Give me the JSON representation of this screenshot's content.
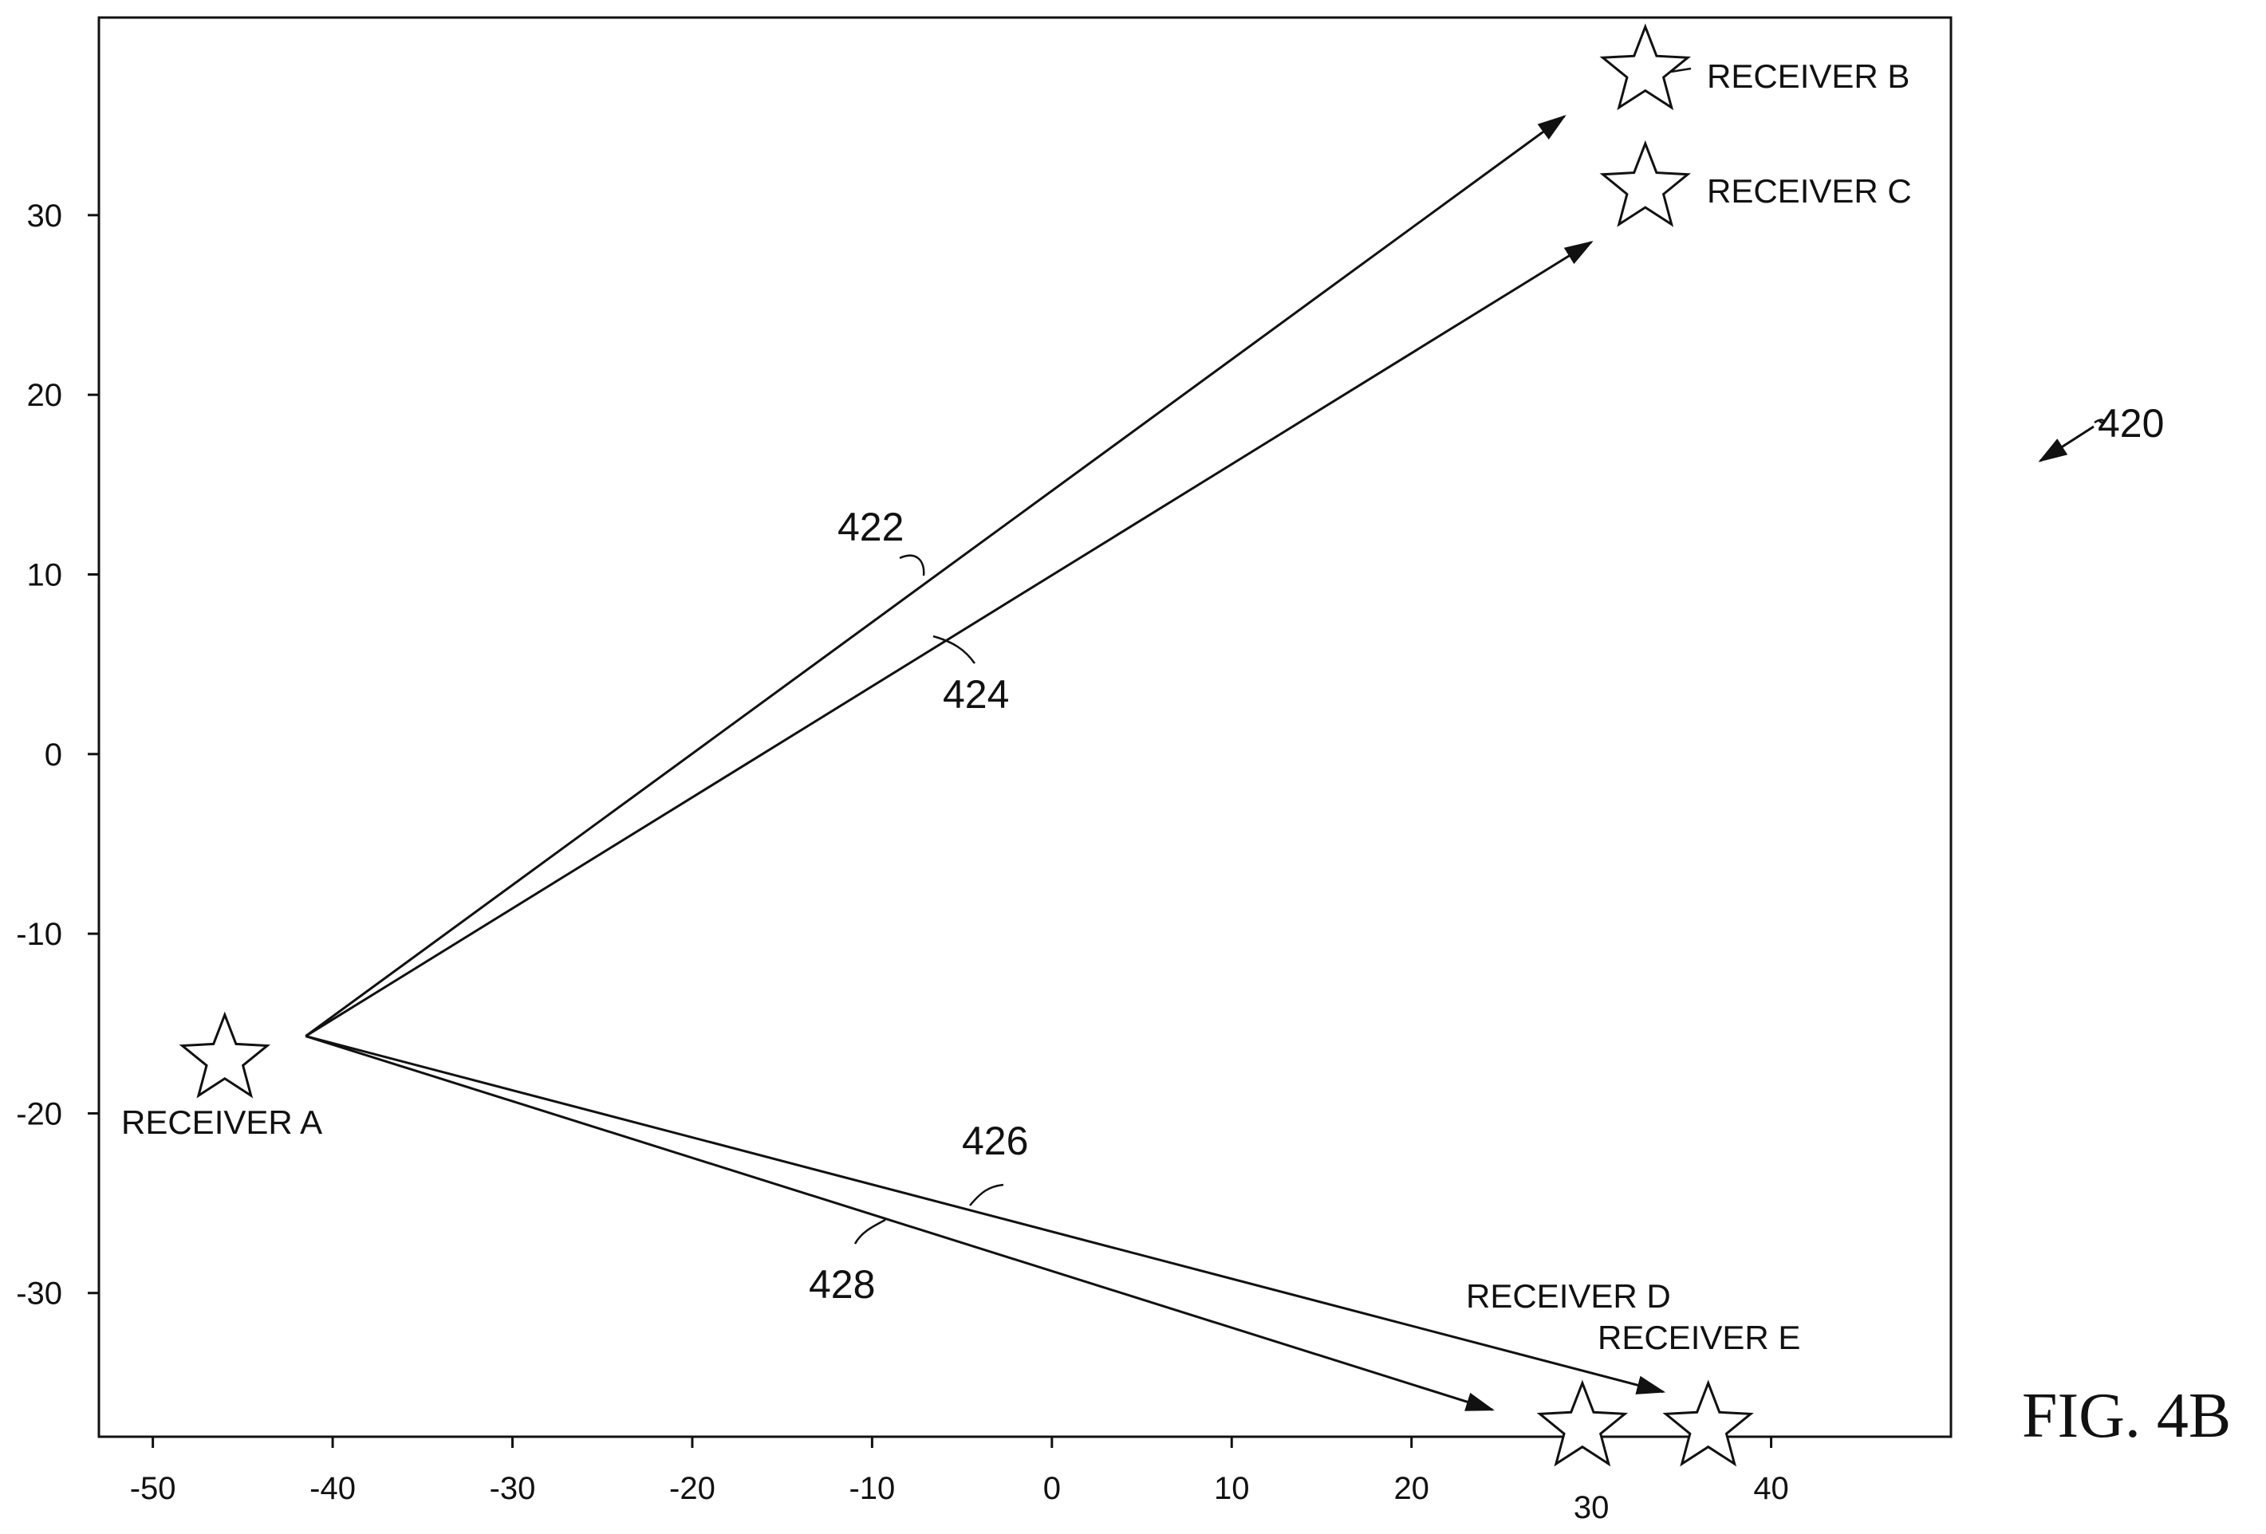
{
  "figure": {
    "ref_number": "420",
    "label": "FIG. 4B"
  },
  "axes": {
    "x_ticks": [
      "-50",
      "-40",
      "-30",
      "-20",
      "-10",
      "0",
      "10",
      "20",
      "30",
      "40"
    ],
    "y_ticks": [
      "30",
      "20",
      "10",
      "0",
      "-10",
      "-20",
      "-30"
    ],
    "xlim": [
      -53,
      50
    ],
    "ylim": [
      -38,
      41
    ]
  },
  "receivers": [
    {
      "id": "a",
      "label": "RECEIVER A",
      "x": -46,
      "y": -17
    },
    {
      "id": "b",
      "label": "RECEIVER B",
      "x": 33,
      "y": 38
    },
    {
      "id": "c",
      "label": "RECEIVER C",
      "x": 33,
      "y": 31.5
    },
    {
      "id": "d",
      "label": "RECEIVER D",
      "x": 29.5,
      "y": -37.5
    },
    {
      "id": "e",
      "label": "RECEIVER E",
      "x": 36.5,
      "y": -37.5
    }
  ],
  "vectors": [
    {
      "id": "422",
      "label": "422",
      "from": [
        -41.5,
        -15.7
      ],
      "to": [
        28.5,
        35.5
      ]
    },
    {
      "id": "424",
      "label": "424",
      "from": [
        -41.5,
        -15.7
      ],
      "to": [
        30,
        28.5
      ]
    },
    {
      "id": "426",
      "label": "426",
      "from": [
        -41.5,
        -15.7
      ],
      "to": [
        34,
        -35.5
      ]
    },
    {
      "id": "428",
      "label": "428",
      "from": [
        -41.5,
        -15.7
      ],
      "to": [
        24.5,
        -36.5
      ]
    }
  ]
}
